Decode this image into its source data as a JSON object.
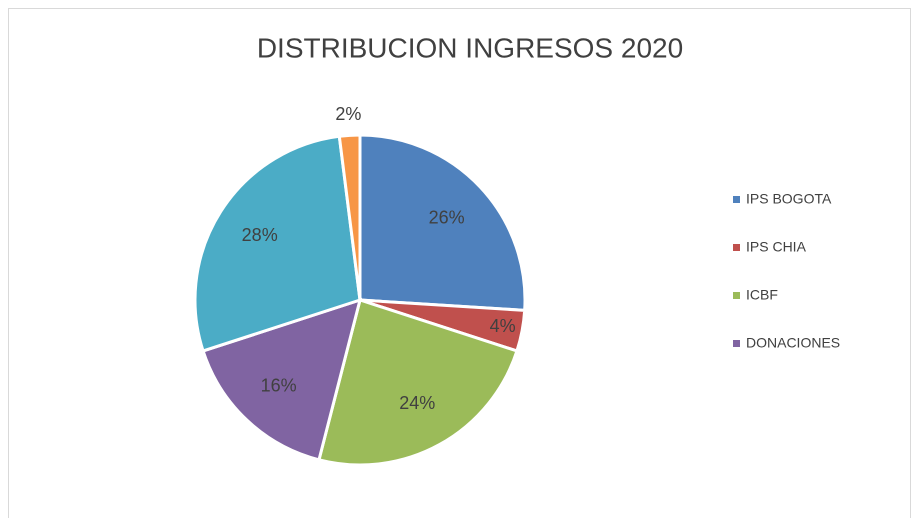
{
  "chart_data": {
    "type": "pie",
    "title": "DISTRIBUCION INGRESOS 2020",
    "categories": [
      "IPS BOGOTA",
      "IPS CHIA",
      "ICBF",
      "DONACIONES",
      null,
      null
    ],
    "values": [
      26,
      4,
      24,
      16,
      28,
      2
    ],
    "value_labels": [
      "26%",
      "4%",
      "24%",
      "16%",
      "28%",
      "2%"
    ],
    "colors": [
      "#4f81bd",
      "#c0504d",
      "#9bbb59",
      "#8064a2",
      "#4bacc6",
      "#f79646"
    ],
    "legend": "right"
  }
}
